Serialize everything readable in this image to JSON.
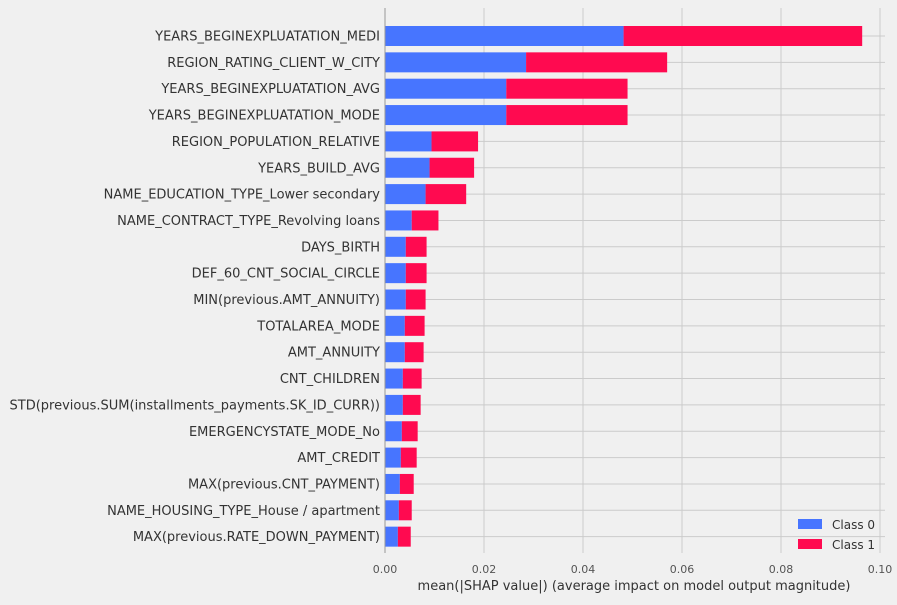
{
  "chart_data": {
    "type": "bar",
    "stacked": true,
    "orientation": "horizontal",
    "xlabel": "mean(|SHAP value|) (average impact on model output magnitude)",
    "xlim": [
      0,
      0.1
    ],
    "xticks": [
      0,
      0.02,
      0.04,
      0.06,
      0.08,
      0.1
    ],
    "xtick_labels": [
      "0.00",
      "0.02",
      "0.04",
      "0.06",
      "0.08",
      "0.10"
    ],
    "grid": true,
    "legend_position": "bottom-right",
    "categories": [
      "YEARS_BEGINEXPLUATATION_MEDI",
      "REGION_RATING_CLIENT_W_CITY",
      "YEARS_BEGINEXPLUATATION_AVG",
      "YEARS_BEGINEXPLUATATION_MODE",
      "REGION_POPULATION_RELATIVE",
      "YEARS_BUILD_AVG",
      "NAME_EDUCATION_TYPE_Lower secondary",
      "NAME_CONTRACT_TYPE_Revolving loans",
      "DAYS_BIRTH",
      "DEF_60_CNT_SOCIAL_CIRCLE",
      "MIN(previous.AMT_ANNUITY)",
      "TOTALAREA_MODE",
      "AMT_ANNUITY",
      "CNT_CHILDREN",
      "STD(previous.SUM(installments_payments.SK_ID_CURR))",
      "EMERGENCYSTATE_MODE_No",
      "AMT_CREDIT",
      "MAX(previous.CNT_PAYMENT)",
      "NAME_HOUSING_TYPE_House / apartment",
      "MAX(previous.RATE_DOWN_PAYMENT)"
    ],
    "series": [
      {
        "name": "Class 0",
        "color": "#4775ff",
        "values": [
          0.0482,
          0.0285,
          0.0245,
          0.0245,
          0.0094,
          0.009,
          0.0082,
          0.0054,
          0.0042,
          0.0042,
          0.0042,
          0.004,
          0.004,
          0.0036,
          0.0036,
          0.0034,
          0.0032,
          0.003,
          0.0028,
          0.0026
        ]
      },
      {
        "name": "Class 1",
        "color": "#ff0a50",
        "values": [
          0.0482,
          0.0285,
          0.0245,
          0.0245,
          0.0094,
          0.009,
          0.0082,
          0.0054,
          0.0042,
          0.0042,
          0.004,
          0.004,
          0.0038,
          0.0038,
          0.0036,
          0.0032,
          0.0032,
          0.0028,
          0.0026,
          0.0026
        ]
      }
    ]
  }
}
